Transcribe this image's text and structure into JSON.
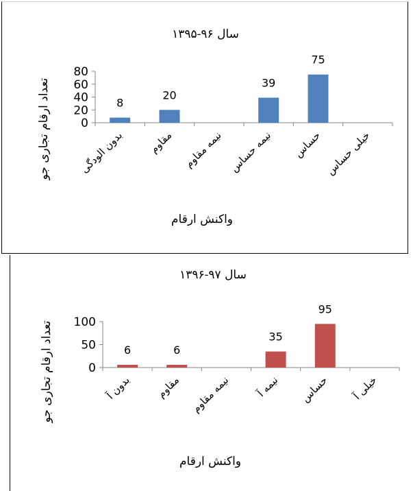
{
  "chart_data": [
    {
      "type": "bar",
      "title": "سال ۹۶-۱۳۹۵",
      "xlabel": "واکنش ارقام",
      "ylabel": "تعداد ارقام تجاری جو",
      "categories": [
        "بدون الودگی",
        "مقاوم",
        "نیمه مقاوم",
        "نیمه حساس",
        "حساس",
        "خیلی حساس"
      ],
      "values": [
        8,
        20,
        null,
        39,
        75,
        null
      ],
      "data_labels": [
        "8",
        "20",
        "",
        "39",
        "75",
        ""
      ],
      "yticks": [
        0,
        20,
        40,
        60,
        80
      ],
      "ylim": [
        0,
        80
      ],
      "bar_color": "#4f81bd",
      "grid": false,
      "legend": "none"
    },
    {
      "type": "bar",
      "title": "سال ۹۷-۱۳۹۶",
      "xlabel": "واکنش ارقام",
      "ylabel": "تعداد ارقام تجاری جو",
      "categories": [
        "بدون آ",
        "مقاوم",
        "نیمه مقاوم",
        "نیمه آ",
        "حساس",
        "خیلی آ"
      ],
      "values": [
        6,
        6,
        null,
        35,
        95,
        null
      ],
      "data_labels": [
        "6",
        "6",
        "",
        "35",
        "95",
        ""
      ],
      "yticks": [
        0,
        50,
        100
      ],
      "ylim": [
        0,
        100
      ],
      "bar_color": "#c0504d",
      "grid": false,
      "legend": "none"
    }
  ]
}
